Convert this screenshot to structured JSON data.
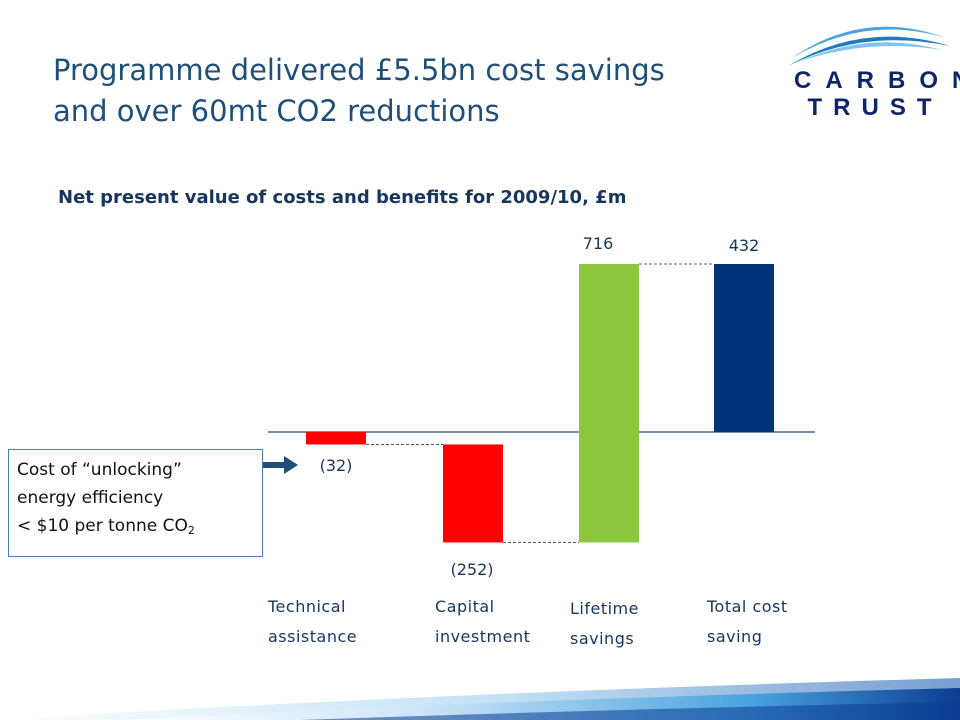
{
  "header": {
    "title_line1": "Programme delivered £5.5bn cost savings",
    "title_line2": "and over 60mt CO2 reductions"
  },
  "logo": {
    "line1": "CARBON",
    "line2": "TRUST",
    "color": "#10246b"
  },
  "callout": {
    "line1": "Cost of “unlocking”",
    "line2": "energy efficiency",
    "line3_main": "< $10 per tonne CO",
    "line3_sub": "2"
  },
  "chart_data": {
    "type": "bar",
    "subtitle": "Net present value of costs and benefits for 2009/10, £m",
    "categories": [
      "Technical assistance",
      "Capital investment",
      "Lifetime savings",
      "Total cost saving"
    ],
    "category_lines": [
      [
        "Technical",
        "assistance"
      ],
      [
        "Capital",
        "investment"
      ],
      [
        "Lifetime",
        "savings"
      ],
      [
        "Total cost",
        "saving"
      ]
    ],
    "values": [
      -32,
      -252,
      716,
      432
    ],
    "value_labels": [
      "(32)",
      "(252)",
      "716",
      "432"
    ],
    "colors": [
      "#ff0000",
      "#ff0000",
      "#8dc63f",
      "#003478"
    ],
    "waterfall": true,
    "ylim": [
      -284,
      432
    ],
    "grid": false,
    "legend": "none"
  }
}
